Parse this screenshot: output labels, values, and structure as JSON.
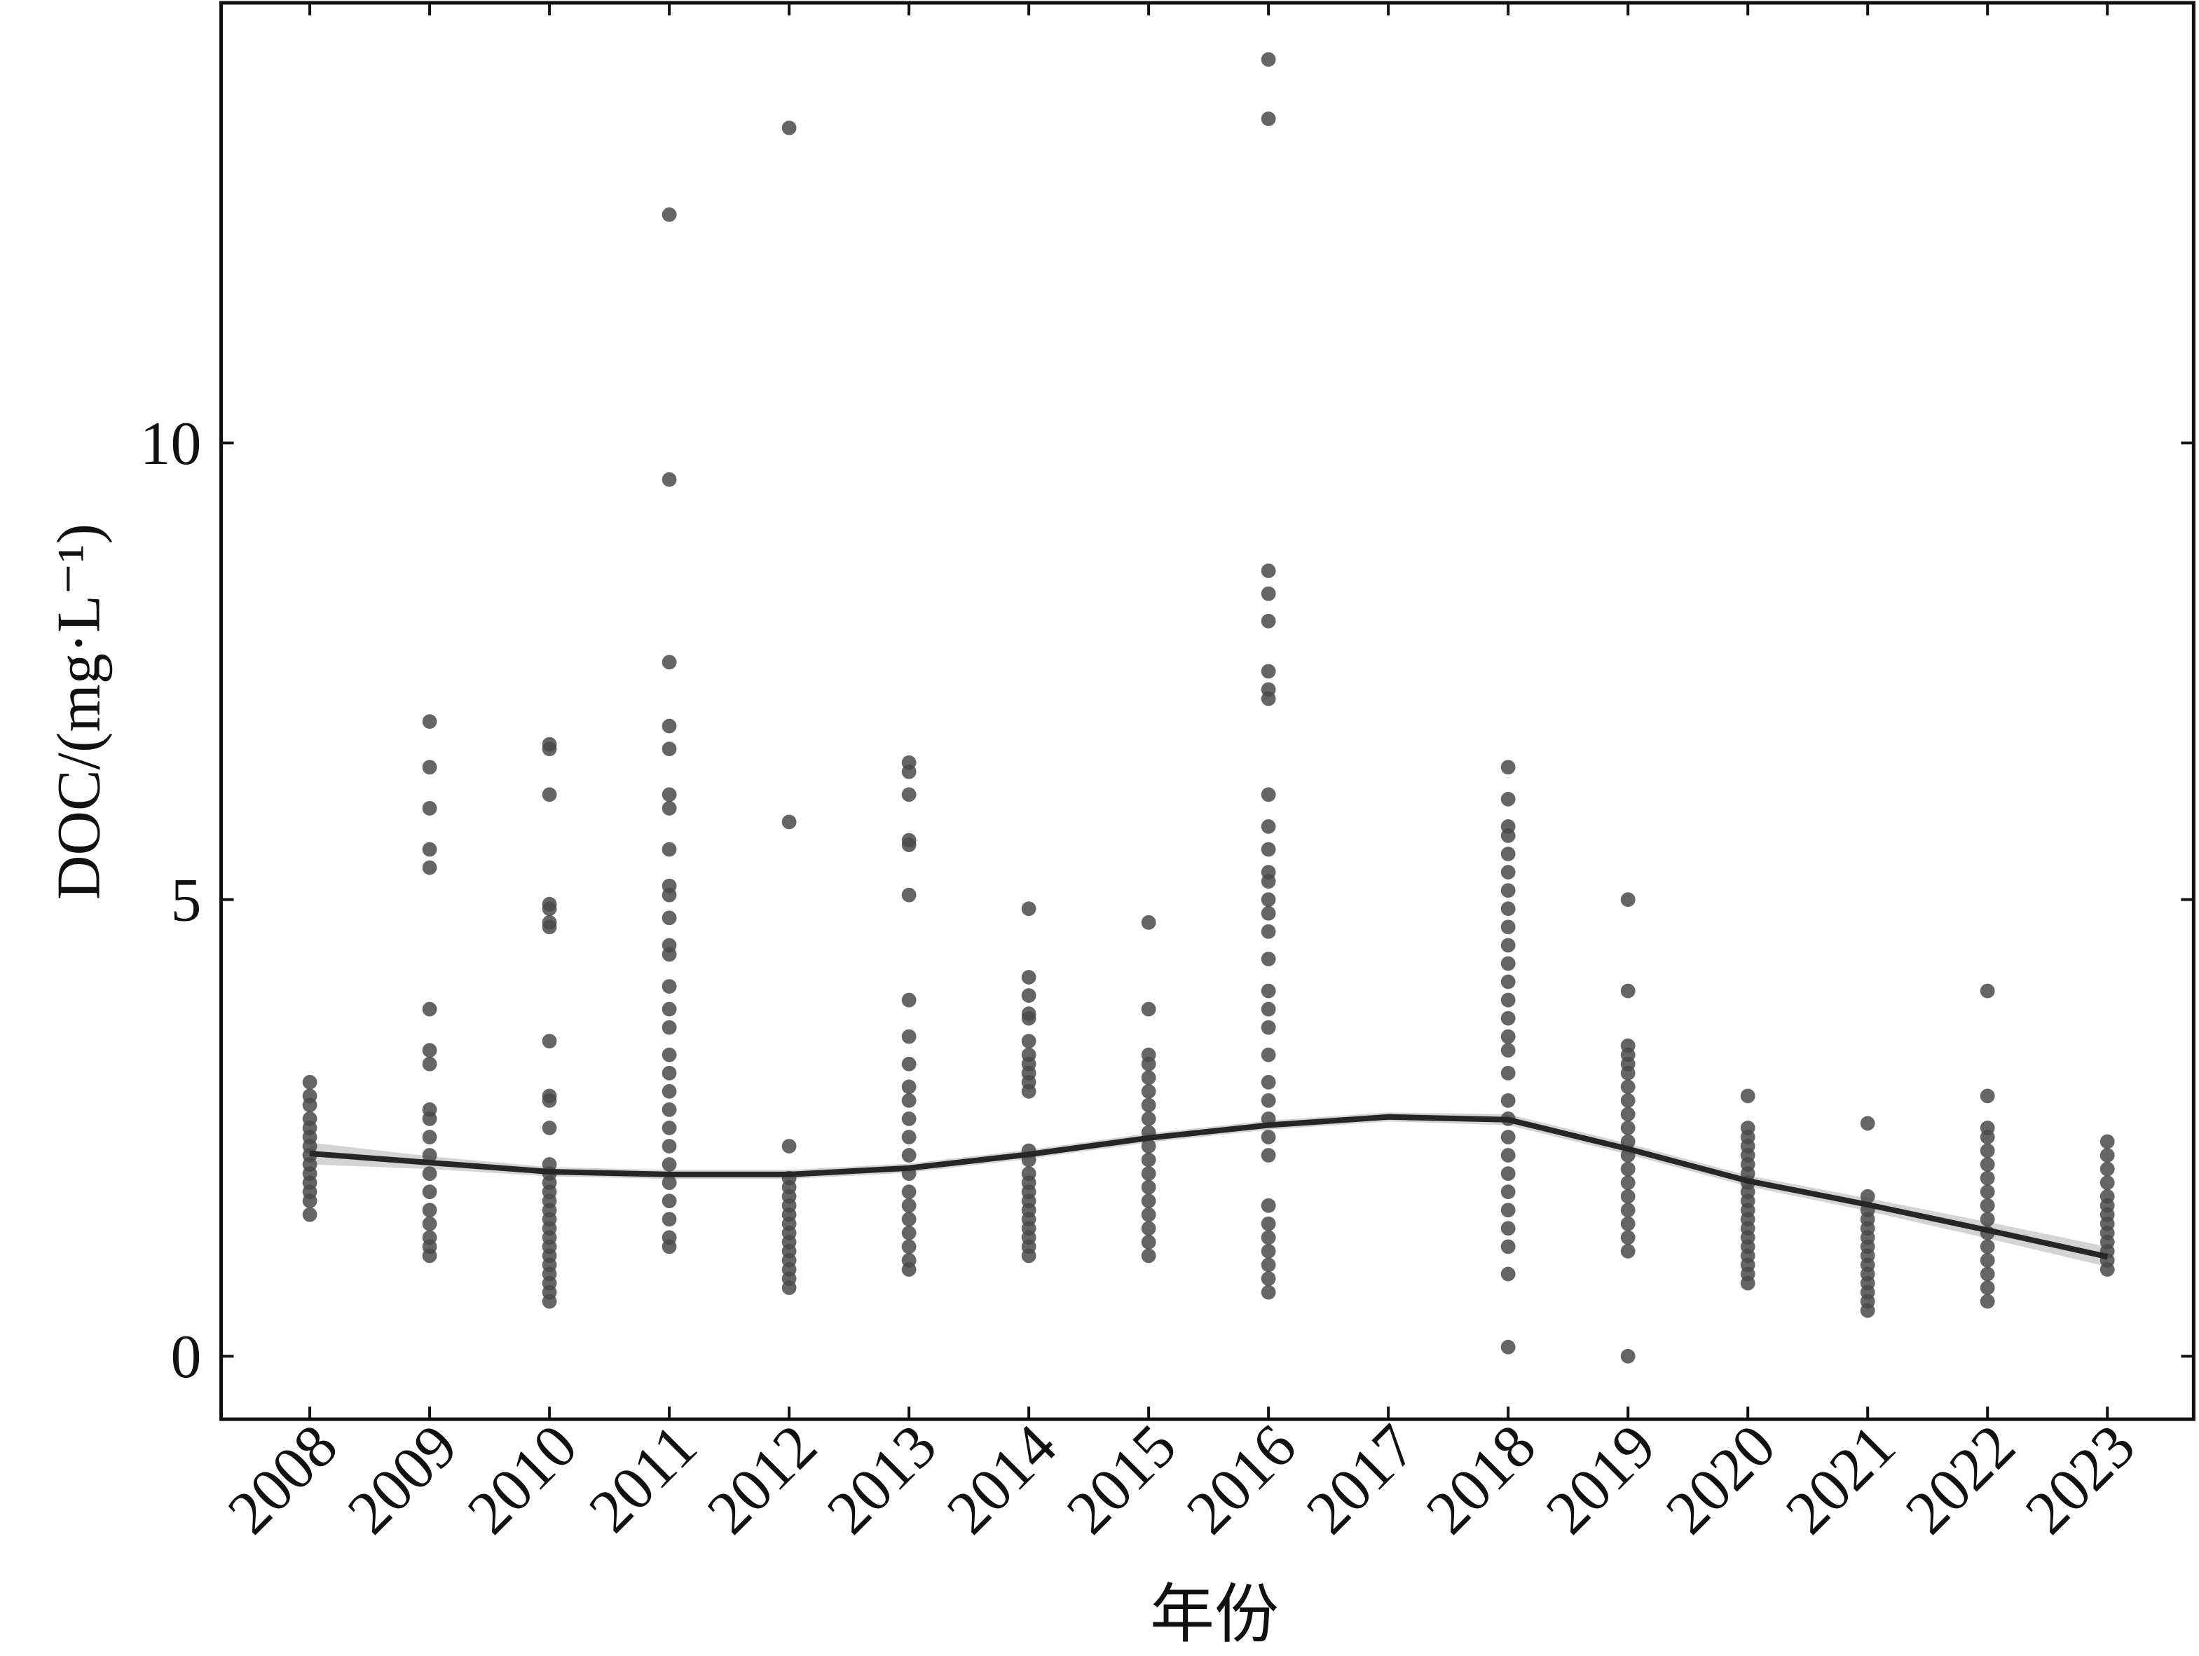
{
  "chart_data": {
    "type": "scatter",
    "x_label": "年份",
    "y_label": "DOC/(mg·L⁻¹)",
    "xlim": [
      2007.26,
      2023.72
    ],
    "ylim": [
      -0.69,
      14.82
    ],
    "xticks": [
      2008,
      2009,
      2010,
      2011,
      2012,
      2013,
      2014,
      2015,
      2016,
      2017,
      2018,
      2019,
      2020,
      2021,
      2022,
      2023
    ],
    "yticks": [
      0,
      5,
      10
    ],
    "color": "#4a4a4a",
    "groups": [
      {
        "x": 2008,
        "values": [
          1.55,
          1.7,
          1.8,
          1.9,
          2.0,
          2.1,
          2.2,
          2.3,
          2.4,
          2.5,
          2.6,
          2.75,
          2.85,
          3.0
        ]
      },
      {
        "x": 2009,
        "values": [
          1.1,
          1.2,
          1.3,
          1.45,
          1.6,
          1.8,
          2.0,
          2.2,
          2.4,
          2.6,
          2.7,
          3.2,
          3.35,
          3.8,
          5.35,
          5.55,
          6.0,
          6.45,
          6.95
        ]
      },
      {
        "x": 2010,
        "values": [
          0.6,
          0.7,
          0.8,
          0.9,
          1.0,
          1.1,
          1.2,
          1.3,
          1.4,
          1.5,
          1.6,
          1.7,
          1.8,
          1.9,
          2.0,
          2.1,
          2.5,
          2.8,
          2.85,
          3.45,
          4.7,
          4.75,
          4.9,
          4.95,
          6.15,
          6.65,
          6.7
        ]
      },
      {
        "x": 2011,
        "values": [
          1.2,
          1.3,
          1.5,
          1.7,
          1.9,
          2.1,
          2.3,
          2.5,
          2.7,
          2.9,
          3.1,
          3.3,
          3.6,
          3.8,
          4.05,
          4.4,
          4.5,
          4.8,
          5.05,
          5.15,
          5.55,
          6.0,
          6.15,
          6.65,
          6.9,
          7.6,
          9.6,
          12.5
        ]
      },
      {
        "x": 2012,
        "values": [
          0.75,
          0.85,
          0.95,
          1.05,
          1.15,
          1.25,
          1.35,
          1.45,
          1.55,
          1.65,
          1.75,
          1.85,
          1.95,
          2.3,
          5.85,
          13.45
        ]
      },
      {
        "x": 2013,
        "values": [
          0.95,
          1.05,
          1.2,
          1.35,
          1.5,
          1.65,
          1.8,
          2.0,
          2.2,
          2.4,
          2.6,
          2.8,
          2.95,
          3.2,
          3.5,
          3.9,
          5.05,
          5.6,
          5.65,
          6.15,
          6.4,
          6.5
        ]
      },
      {
        "x": 2014,
        "values": [
          1.1,
          1.2,
          1.3,
          1.4,
          1.5,
          1.6,
          1.7,
          1.8,
          1.9,
          2.0,
          2.15,
          2.25,
          2.9,
          3.0,
          3.1,
          3.2,
          3.3,
          3.45,
          3.7,
          3.75,
          3.95,
          4.15,
          4.9
        ]
      },
      {
        "x": 2015,
        "values": [
          1.1,
          1.25,
          1.4,
          1.55,
          1.7,
          1.85,
          2.0,
          2.15,
          2.3,
          2.45,
          2.6,
          2.75,
          2.9,
          3.05,
          3.2,
          3.3,
          3.8,
          4.75
        ]
      },
      {
        "x": 2016,
        "values": [
          0.7,
          0.85,
          1.0,
          1.15,
          1.3,
          1.45,
          1.65,
          2.2,
          2.4,
          2.6,
          2.8,
          3.0,
          3.3,
          3.6,
          3.8,
          4.0,
          4.35,
          4.65,
          4.85,
          5.0,
          5.2,
          5.3,
          5.55,
          5.8,
          6.15,
          7.2,
          7.3,
          7.5,
          8.05,
          8.35,
          8.6,
          13.55,
          14.2
        ]
      },
      {
        "x": 2018,
        "values": [
          0.1,
          0.9,
          1.2,
          1.4,
          1.6,
          1.8,
          2.0,
          2.2,
          2.4,
          2.6,
          2.8,
          3.1,
          3.35,
          3.5,
          3.7,
          3.9,
          4.1,
          4.3,
          4.5,
          4.7,
          4.9,
          5.1,
          5.3,
          5.5,
          5.7,
          5.8,
          6.1,
          6.45
        ]
      },
      {
        "x": 2019,
        "values": [
          0.0,
          1.15,
          1.3,
          1.45,
          1.6,
          1.75,
          1.9,
          2.05,
          2.2,
          2.35,
          2.5,
          2.65,
          2.8,
          2.95,
          3.1,
          3.2,
          3.3,
          3.4,
          4.0,
          5.0
        ]
      },
      {
        "x": 2020,
        "values": [
          0.8,
          0.9,
          1.0,
          1.1,
          1.2,
          1.3,
          1.4,
          1.5,
          1.6,
          1.7,
          1.8,
          1.9,
          2.0,
          2.1,
          2.2,
          2.3,
          2.4,
          2.5,
          2.85
        ]
      },
      {
        "x": 2021,
        "values": [
          0.5,
          0.6,
          0.7,
          0.8,
          0.9,
          1.0,
          1.1,
          1.2,
          1.3,
          1.4,
          1.5,
          1.6,
          1.75,
          2.55
        ]
      },
      {
        "x": 2022,
        "values": [
          0.6,
          0.75,
          0.9,
          1.05,
          1.2,
          1.35,
          1.5,
          1.65,
          1.8,
          1.95,
          2.1,
          2.25,
          2.4,
          2.5,
          2.85,
          4.0
        ]
      },
      {
        "x": 2023,
        "values": [
          0.95,
          1.05,
          1.15,
          1.25,
          1.35,
          1.45,
          1.55,
          1.65,
          1.75,
          1.9,
          2.05,
          2.2,
          2.35
        ]
      }
    ],
    "trend": {
      "color": "#262626",
      "band_color": "#d4d4d4",
      "x": [
        2008,
        2009,
        2010,
        2011,
        2012,
        2013,
        2014,
        2015,
        2016,
        2017,
        2018,
        2019,
        2020,
        2021,
        2022,
        2023
      ],
      "values": [
        2.22,
        2.12,
        2.02,
        1.99,
        1.99,
        2.06,
        2.21,
        2.39,
        2.53,
        2.62,
        2.59,
        2.27,
        1.92,
        1.66,
        1.38,
        1.09
      ],
      "lower": [
        2.1,
        2.05,
        1.97,
        1.94,
        1.94,
        2.01,
        2.16,
        2.34,
        2.48,
        2.57,
        2.53,
        2.21,
        1.86,
        1.59,
        1.29,
        0.98
      ],
      "upper": [
        2.34,
        2.19,
        2.07,
        2.04,
        2.04,
        2.11,
        2.26,
        2.44,
        2.58,
        2.67,
        2.65,
        2.33,
        1.98,
        1.73,
        1.47,
        1.2
      ]
    }
  }
}
